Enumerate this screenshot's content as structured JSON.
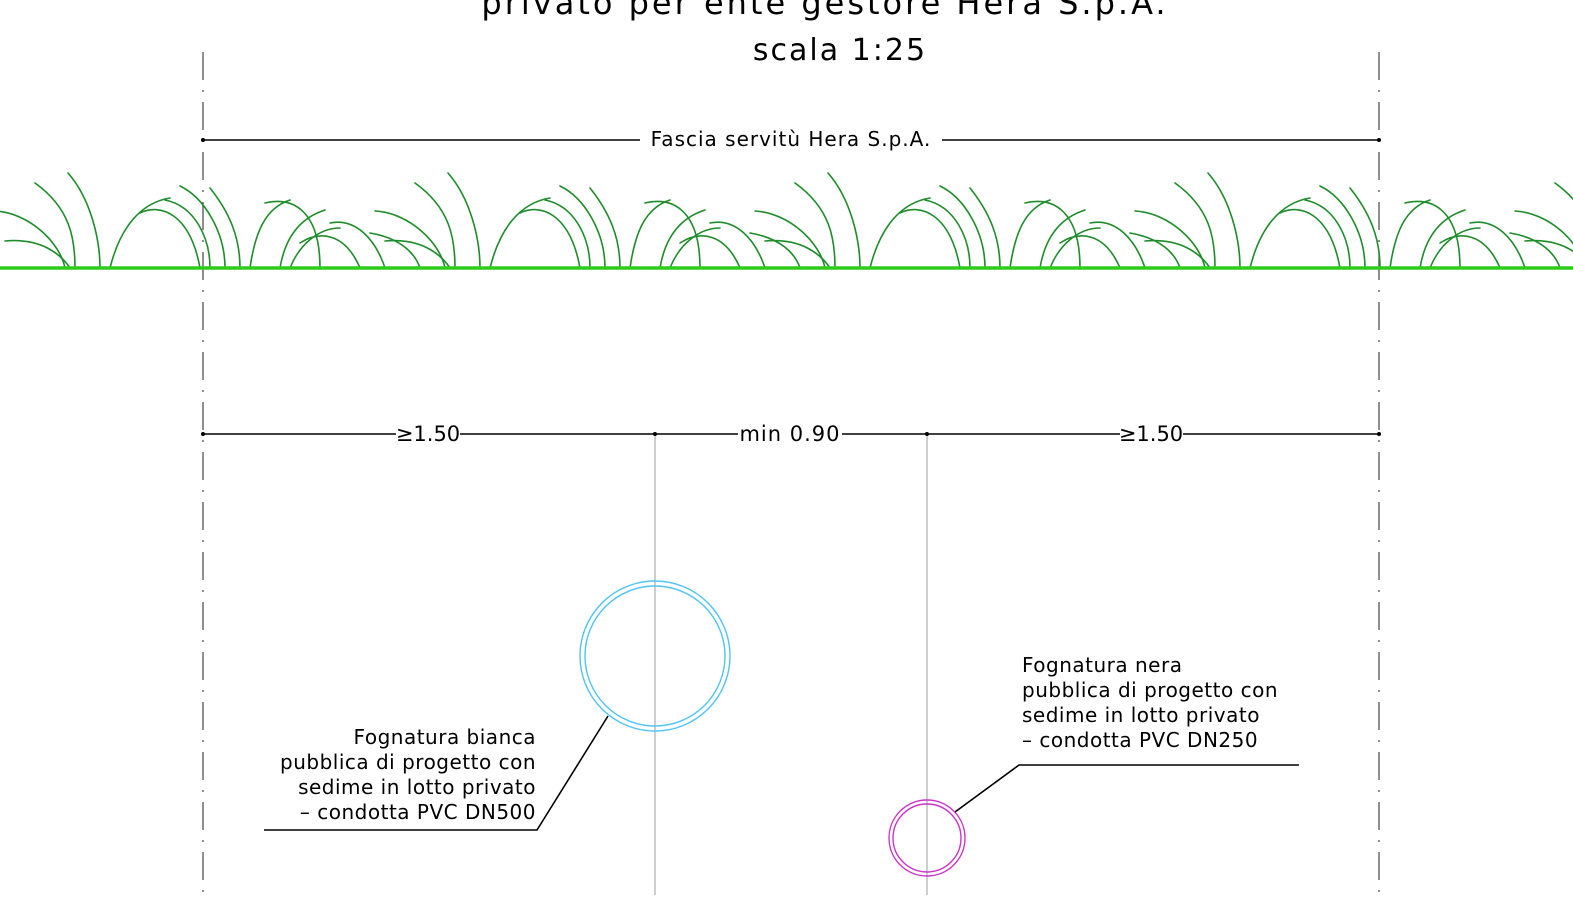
{
  "title": {
    "line_partial": "privato per ente gestore Hera S.p.A.",
    "scale": "scala 1:25"
  },
  "dimensions": {
    "band": "Fascia servitù Hera S.p.A.",
    "left": "≥1.50",
    "middle": "min 0.90",
    "right": "≥1.50"
  },
  "pipes": {
    "white_sewer": {
      "lines": [
        "Fognatura bianca",
        "pubblica di progetto con",
        "sedime in lotto privato",
        "– condotta PVC DN500"
      ],
      "color": "#4fc3f7"
    },
    "black_sewer": {
      "lines": [
        "Fognatura nera",
        "pubblica di progetto con",
        "sedime in lotto privato",
        "– condotta PVC DN250"
      ],
      "color": "#cc33cc"
    }
  },
  "colors": {
    "ground": "#2ecc1a",
    "grass": "#1e8c2a",
    "lines": "#000000",
    "axis": "#9e9e9e"
  }
}
